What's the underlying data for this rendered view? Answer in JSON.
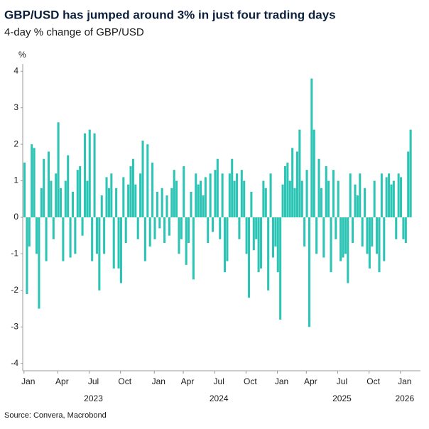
{
  "chart_data": {
    "type": "bar",
    "title": "GBP/USD has jumped around 3% in just four trading days",
    "subtitle": "4-day % change of GBP/USD",
    "y_label": "%",
    "source": "Source: Convera, Macrobond",
    "color": "#2cc4b4",
    "ylim": [
      -4.2,
      4.2
    ],
    "yticks": [
      -4,
      -3,
      -2,
      -1,
      0,
      1,
      2,
      3,
      4
    ],
    "years": [
      "2023",
      "2024",
      "2025",
      "2026"
    ],
    "categories": [
      "Jan",
      null,
      null,
      null,
      null,
      null,
      null,
      null,
      null,
      null,
      null,
      null,
      null,
      null,
      "Apr",
      null,
      null,
      null,
      null,
      null,
      null,
      null,
      null,
      null,
      null,
      null,
      null,
      "Jul",
      null,
      null,
      null,
      null,
      null,
      null,
      null,
      null,
      null,
      null,
      null,
      null,
      "Oct",
      null,
      null,
      null,
      null,
      null,
      null,
      null,
      null,
      null,
      null,
      null,
      null,
      null,
      "Jan",
      null,
      null,
      null,
      null,
      null,
      null,
      null,
      null,
      null,
      null,
      null,
      "Apr",
      null,
      null,
      null,
      null,
      null,
      null,
      null,
      null,
      null,
      null,
      null,
      null,
      "Jul",
      null,
      null,
      null,
      null,
      null,
      null,
      null,
      null,
      null,
      null,
      null,
      null,
      "Oct",
      null,
      null,
      null,
      null,
      null,
      null,
      null,
      null,
      null,
      null,
      null,
      null,
      "Jan",
      null,
      null,
      null,
      null,
      null,
      null,
      null,
      null,
      null,
      null,
      null,
      "Apr",
      null,
      null,
      null,
      null,
      null,
      null,
      null,
      null,
      null,
      null,
      null,
      null,
      "Jul",
      null,
      null,
      null,
      null,
      null,
      null,
      null,
      null,
      null,
      null,
      null,
      null,
      "Oct",
      null,
      null,
      null,
      null,
      null,
      null,
      null,
      null,
      null,
      null,
      null,
      null,
      "Jan",
      null,
      null,
      null,
      null
    ],
    "values": [
      1.5,
      -2.1,
      -0.8,
      2.0,
      1.9,
      -1.0,
      -2.5,
      0.8,
      1.6,
      -1.2,
      1.8,
      1.0,
      -0.6,
      1.2,
      2.6,
      0.8,
      -1.2,
      1.0,
      1.7,
      -1.1,
      0.7,
      -1.0,
      1.3,
      1.4,
      -0.5,
      2.3,
      1.0,
      2.4,
      -1.2,
      2.3,
      -1.0,
      -2.0,
      0.6,
      -1.0,
      1.1,
      0.8,
      1.2,
      -1.4,
      0.8,
      -1.4,
      -1.8,
      1.1,
      -0.7,
      0.9,
      1.4,
      1.6,
      0.9,
      -0.6,
      1.2,
      2.1,
      -1.2,
      2.0,
      -0.8,
      1.5,
      -0.6,
      0.7,
      -0.3,
      0.8,
      -0.7,
      0.6,
      -0.5,
      0.8,
      1.3,
      1.0,
      -1.0,
      -0.6,
      1.4,
      -1.3,
      -0.7,
      0.7,
      -1.7,
      1.2,
      0.9,
      1.0,
      0.6,
      1.1,
      -0.7,
      1.2,
      -0.4,
      1.3,
      1.6,
      -0.6,
      1.2,
      -1.5,
      -1.2,
      1.2,
      1.6,
      1.0,
      1.2,
      -0.6,
      1.3,
      1.0,
      -1.0,
      -2.2,
      0.7,
      -0.9,
      -0.6,
      -1.5,
      -1.4,
      1.0,
      0.8,
      -2.0,
      1.2,
      -1.1,
      -0.8,
      -1.5,
      -2.8,
      0.9,
      1.4,
      1.5,
      1.0,
      1.9,
      0.8,
      1.8,
      2.4,
      1.0,
      -0.8,
      1.3,
      -3.0,
      3.8,
      2.4,
      -1.0,
      1.6,
      0.8,
      -1.1,
      1.4,
      1.0,
      -1.5,
      1.3,
      -0.6,
      1.0,
      -1.2,
      -1.1,
      -1.0,
      -1.8,
      1.2,
      -0.7,
      0.9,
      0.6,
      1.2,
      -0.8,
      0.8,
      -1.0,
      -1.4,
      -0.8,
      1.0,
      -1.0,
      -1.5,
      1.2,
      -1.2,
      1.1,
      1.2,
      0.9,
      1.0,
      -0.6,
      1.2,
      1.1,
      -0.6,
      -0.7,
      1.8,
      2.4
    ]
  }
}
